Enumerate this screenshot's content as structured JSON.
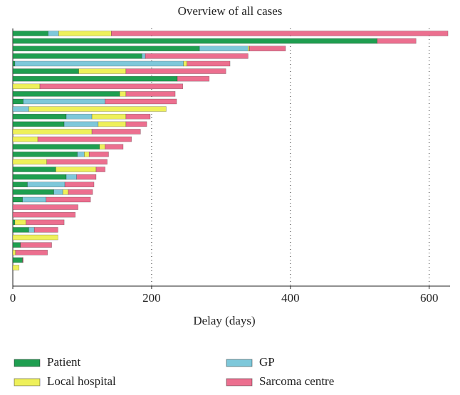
{
  "chart_data": {
    "type": "stacked-barh",
    "title": "Overview of all cases",
    "x_label": "Delay (days)",
    "categories": [
      null,
      null,
      null,
      null,
      null,
      null,
      null,
      null,
      null,
      null,
      null,
      null,
      null,
      null,
      null,
      null,
      null,
      null,
      null,
      null,
      null,
      null,
      null,
      null,
      null,
      null,
      null,
      null,
      null,
      null,
      null,
      null
    ],
    "series": [
      {
        "name": "Patient",
        "color": "#1f9e50",
        "values": [
          51,
          525,
          269,
          186,
          3,
          95,
          237,
          0,
          154,
          15,
          0,
          77,
          74,
          0,
          0,
          125,
          93,
          0,
          62,
          77,
          21,
          59,
          14,
          0,
          0,
          3,
          23,
          0,
          11,
          0,
          14,
          0
        ]
      },
      {
        "name": "GP",
        "color": "#7ec8da",
        "values": [
          15,
          0,
          70,
          5,
          243,
          0,
          0,
          0,
          0,
          118,
          23,
          37,
          49,
          0,
          0,
          0,
          10,
          0,
          0,
          15,
          54,
          13,
          34,
          0,
          0,
          0,
          8,
          0,
          0,
          0,
          0,
          0
        ]
      },
      {
        "name": "Local hospital",
        "color": "#eef05a",
        "values": [
          76,
          0,
          2,
          0,
          5,
          68,
          0,
          39,
          9,
          0,
          198,
          49,
          40,
          114,
          36,
          8,
          7,
          49,
          58,
          0,
          0,
          8,
          0,
          0,
          0,
          16,
          0,
          65,
          0,
          4,
          0,
          9
        ]
      },
      {
        "name": "Sarcoma centre",
        "color": "#ec6f8f",
        "values": [
          485,
          56,
          52,
          148,
          62,
          144,
          46,
          206,
          71,
          103,
          0,
          35,
          30,
          70,
          135,
          26,
          28,
          87,
          13,
          28,
          42,
          35,
          64,
          94,
          90,
          55,
          34,
          0,
          45,
          46,
          1,
          0
        ]
      }
    ],
    "xlim": [
      0,
      630
    ],
    "xticks": [
      0,
      200,
      400,
      600
    ],
    "grid": true
  }
}
